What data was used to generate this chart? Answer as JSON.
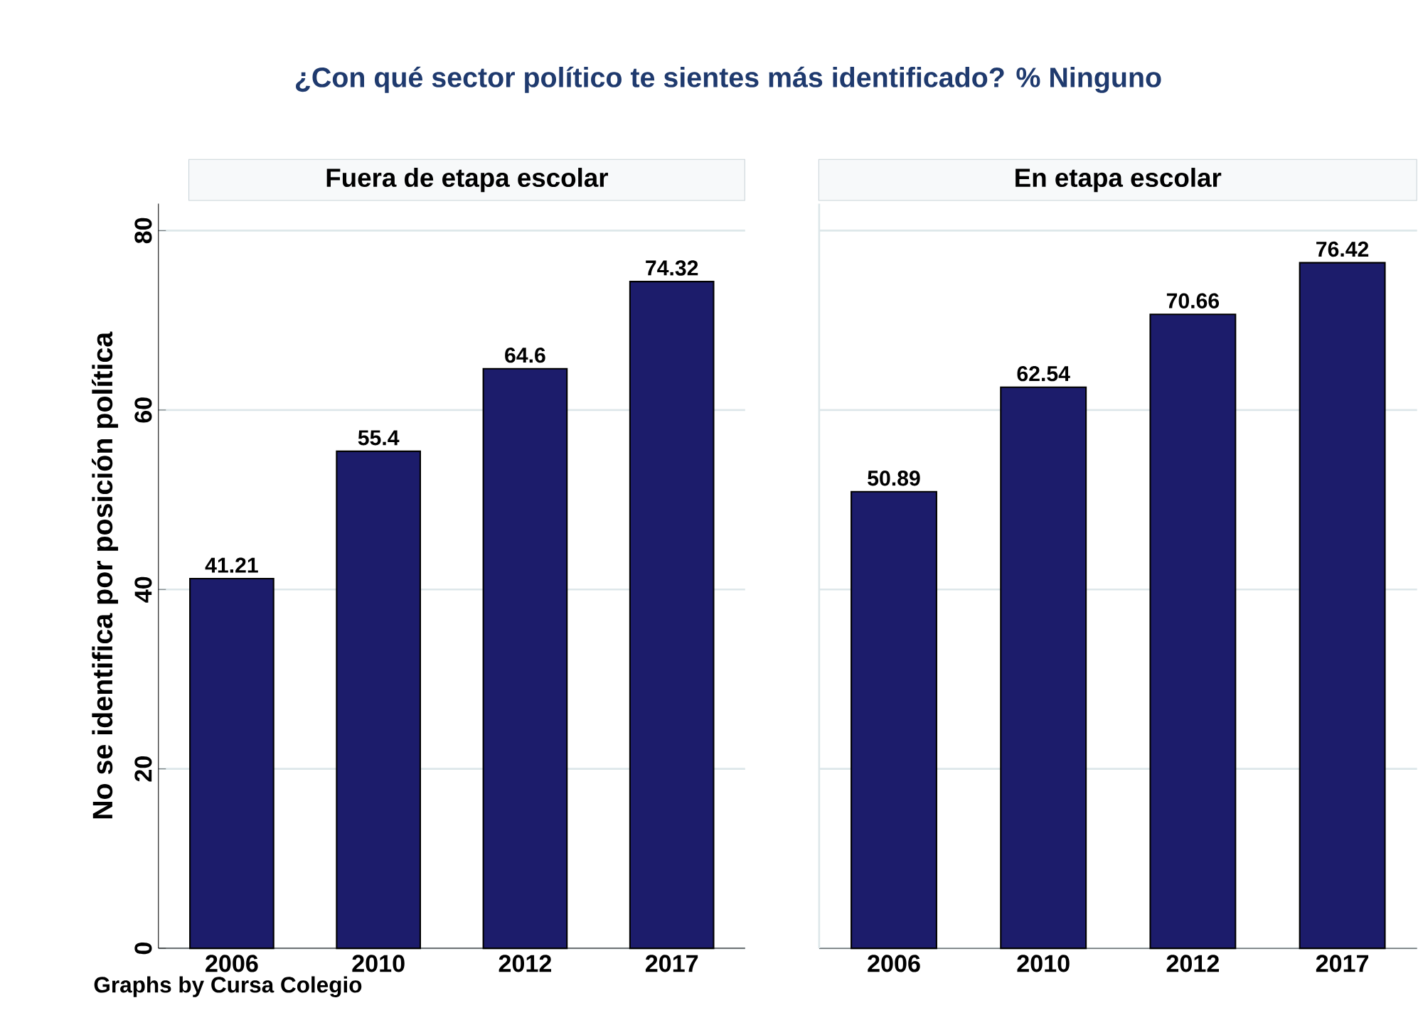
{
  "chart_data": [
    {
      "type": "bar",
      "title": "¿Con qué sector político te sientes más identificado? % Ninguno",
      "subtitle": "Fuera de etapa escolar",
      "ylabel": "No se identifica por posición política",
      "categories": [
        "2006",
        "2010",
        "2012",
        "2017"
      ],
      "values": [
        41.21,
        55.4,
        64.6,
        74.32
      ],
      "color": "#1c1c6b",
      "ylim": [
        0,
        83
      ],
      "yticks": [
        0,
        20,
        40,
        60,
        80
      ],
      "grid": "y",
      "data_labels": true,
      "annotations": [
        "Graphs by Cursa Colegio"
      ]
    },
    {
      "type": "bar",
      "subtitle": "En etapa escolar",
      "categories": [
        "2006",
        "2010",
        "2012",
        "2017"
      ],
      "values": [
        50.89,
        62.54,
        70.66,
        76.42
      ],
      "color": "#1c1c6b",
      "ylim": [
        0,
        83
      ],
      "yticks": [
        0,
        20,
        40,
        60,
        80
      ],
      "grid": "y",
      "data_labels": true,
      "tick_labels": "x"
    }
  ]
}
